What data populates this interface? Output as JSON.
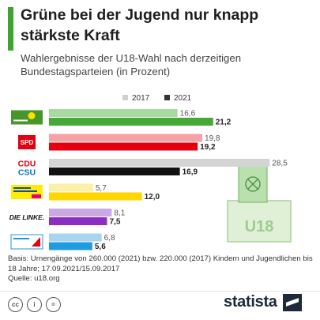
{
  "header": {
    "title": "Grüne bei der Jugend nur knapp stärkste Kraft",
    "subtitle": "Wahlergebnisse der U18-Wahl nach derzeitigen Bundestagsparteien (in Prozent)"
  },
  "chart_data": {
    "type": "bar",
    "orientation": "horizontal",
    "categories": [
      "Bündnis 90/Die Grünen",
      "SPD",
      "CDU/CSU",
      "FDP",
      "Die Linke",
      "AfD"
    ],
    "logo_labels": [
      "",
      "SPD",
      "CDU",
      "",
      "DIE LINKE.",
      ""
    ],
    "logo_labels_second": [
      "",
      "",
      "CSU",
      "",
      "",
      ""
    ],
    "series": [
      {
        "name": "2017",
        "values": [
          16.6,
          19.8,
          28.5,
          5.7,
          8.1,
          6.8
        ],
        "labels": [
          "16,6",
          "19,8",
          "28,5",
          "5,7",
          "8,1",
          "6,8"
        ],
        "colors": [
          "#a7d9a0",
          "#f4a2a6",
          "#d4d4d4",
          "#faf0a8",
          "#c9a8e3",
          "#a9d4ef"
        ]
      },
      {
        "name": "2021",
        "values": [
          21.2,
          19.2,
          16.9,
          12.0,
          7.5,
          5.6
        ],
        "labels": [
          "21,2",
          "19,2",
          "16,9",
          "12,0",
          "7,5",
          "5,6"
        ],
        "colors": [
          "#46a837",
          "#e3000f",
          "#111111",
          "#ffd600",
          "#8b2ec2",
          "#1f9be0"
        ]
      }
    ],
    "legend": {
      "position": "top-right",
      "colors": [
        "#cfcfcf",
        "#333333"
      ]
    },
    "xlim": [
      0,
      30
    ],
    "ballot_box_label": "U18"
  },
  "footer": {
    "note": "Basis: Urnengänge von 260.000 (2021) bzw. 220.000 (2017) Kindern und Jugendlichen bis 18 Jahre; 17.09.2021/15.09.2017",
    "source": "Quelle: u18.org",
    "license_icons": [
      "cc",
      "i",
      "="
    ],
    "brand": "statista"
  }
}
